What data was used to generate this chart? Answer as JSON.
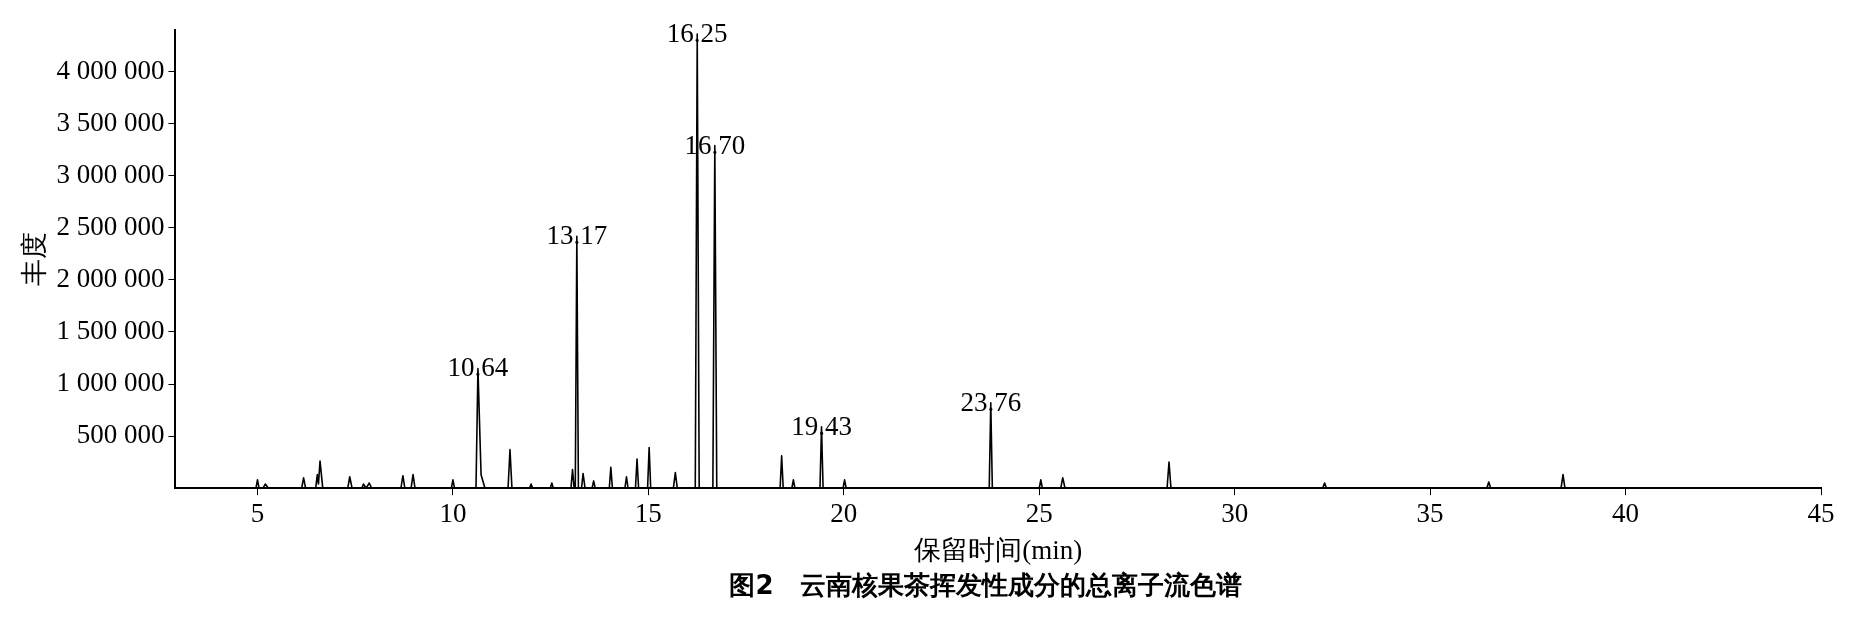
{
  "chart_data": {
    "type": "line",
    "title": "图2　云南核果茶挥发性成分的总离子流色谱",
    "xlabel": "保留时间(min)",
    "ylabel": "丰度",
    "xlim": [
      2.9,
      45
    ],
    "xticks": [
      5,
      10,
      15,
      20,
      25,
      30,
      35,
      40,
      45
    ],
    "ylim": [
      0,
      4400000
    ],
    "yticks": [
      {
        "value": 500000,
        "label": "500 000"
      },
      {
        "value": 1000000,
        "label": "1 000 000"
      },
      {
        "value": 1500000,
        "label": "1 500 000"
      },
      {
        "value": 2000000,
        "label": "2 000 000"
      },
      {
        "value": 2500000,
        "label": "2 500 000"
      },
      {
        "value": 3000000,
        "label": "3 000 000"
      },
      {
        "value": 3500000,
        "label": "3 500 000"
      },
      {
        "value": 4000000,
        "label": "4 000 000"
      }
    ],
    "grid": false,
    "legend": false,
    "marker": "none",
    "line_style": "solid",
    "series": [
      {
        "color": "#000000",
        "x": [
          3.0,
          4.96,
          5.0,
          5.04,
          5.14,
          5.2,
          5.28,
          6.13,
          6.18,
          6.23,
          6.49,
          6.53,
          6.56,
          6.6,
          6.67,
          7.31,
          7.36,
          7.42,
          7.67,
          7.71,
          7.78,
          7.86,
          7.92,
          8.67,
          8.72,
          8.77,
          8.93,
          8.98,
          9.03,
          9.96,
          10.0,
          10.04,
          10.59,
          10.64,
          10.72,
          10.82,
          11.41,
          11.46,
          11.51,
          11.96,
          12.0,
          12.04,
          12.49,
          12.53,
          12.57,
          13.02,
          13.06,
          13.1,
          13.13,
          13.17,
          13.21,
          13.29,
          13.33,
          13.38,
          13.56,
          13.6,
          13.64,
          14.0,
          14.04,
          14.08,
          14.4,
          14.44,
          14.48,
          14.67,
          14.71,
          14.75,
          14.98,
          15.02,
          15.06,
          15.64,
          15.69,
          15.74,
          16.2,
          16.25,
          16.3,
          16.65,
          16.7,
          16.75,
          18.37,
          18.41,
          18.45,
          18.67,
          18.71,
          18.75,
          19.39,
          19.43,
          19.47,
          19.98,
          20.02,
          20.06,
          23.72,
          23.76,
          23.8,
          25.0,
          25.04,
          25.08,
          25.55,
          25.6,
          25.66,
          28.27,
          28.32,
          28.37,
          32.25,
          32.3,
          32.35,
          36.45,
          36.5,
          36.55,
          38.35,
          38.4,
          38.45,
          45.0
        ],
        "values": [
          0,
          0,
          80000,
          0,
          0,
          40000,
          0,
          0,
          100000,
          0,
          0,
          130000,
          40000,
          260000,
          0,
          0,
          110000,
          0,
          0,
          40000,
          0,
          50000,
          0,
          0,
          120000,
          0,
          0,
          130000,
          0,
          0,
          80000,
          0,
          0,
          1150000,
          130000,
          0,
          0,
          370000,
          0,
          0,
          40000,
          0,
          0,
          50000,
          0,
          0,
          180000,
          0,
          0,
          2420000,
          0,
          0,
          140000,
          0,
          0,
          70000,
          0,
          0,
          200000,
          0,
          0,
          110000,
          0,
          0,
          280000,
          0,
          0,
          390000,
          0,
          0,
          150000,
          0,
          0,
          4360000,
          0,
          0,
          3290000,
          0,
          0,
          310000,
          0,
          0,
          80000,
          0,
          0,
          590000,
          0,
          0,
          80000,
          0,
          0,
          820000,
          0,
          0,
          80000,
          0,
          0,
          100000,
          0,
          0,
          250000,
          0,
          0,
          50000,
          0,
          0,
          60000,
          0,
          0,
          130000,
          0,
          0
        ]
      }
    ],
    "annotations": [
      {
        "text": "10.64",
        "x": 10.64,
        "y": 1150000
      },
      {
        "text": "13.17",
        "x": 13.17,
        "y": 2420000
      },
      {
        "text": "16.25",
        "x": 16.25,
        "y": 4360000
      },
      {
        "text": "16.70",
        "x": 16.7,
        "y": 3290000
      },
      {
        "text": "19.43",
        "x": 19.43,
        "y": 590000
      },
      {
        "text": "23.76",
        "x": 23.76,
        "y": 820000
      }
    ]
  }
}
